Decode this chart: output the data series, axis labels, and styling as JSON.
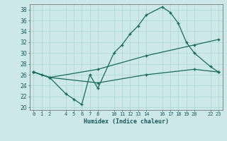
{
  "xlabel": "Humidex (Indice chaleur)",
  "bg_color": "#cce8e8",
  "grid_color": "#aad4d4",
  "line_color": "#1a6b5a",
  "xlim": [
    -0.5,
    23.5
  ],
  "ylim": [
    19.5,
    39
  ],
  "xtick_positions": [
    0,
    1,
    2,
    4,
    5,
    6,
    7,
    8,
    10,
    11,
    12,
    13,
    14,
    16,
    17,
    18,
    19,
    20,
    22,
    23
  ],
  "xtick_labels": [
    "0",
    "1",
    "2",
    "4",
    "5",
    "6",
    "7",
    "8",
    "10",
    "11",
    "12",
    "13",
    "14",
    "16",
    "17",
    "18",
    "19",
    "20",
    "22",
    "23"
  ],
  "ytick_positions": [
    20,
    22,
    24,
    26,
    28,
    30,
    32,
    34,
    36,
    38
  ],
  "ytick_labels": [
    "20",
    "22",
    "24",
    "26",
    "28",
    "30",
    "32",
    "34",
    "36",
    "38"
  ],
  "line1_x": [
    0,
    1,
    2,
    4,
    5,
    6,
    7,
    8,
    10,
    11,
    12,
    13,
    14,
    16,
    17,
    18,
    19,
    20,
    22,
    23
  ],
  "line1_y": [
    26.5,
    26.0,
    25.5,
    22.5,
    21.5,
    20.5,
    26.0,
    23.5,
    30.0,
    31.5,
    33.5,
    35.0,
    37.0,
    38.5,
    37.5,
    35.5,
    32.0,
    30.0,
    27.5,
    26.5
  ],
  "line2_x": [
    0,
    2,
    8,
    14,
    20,
    23
  ],
  "line2_y": [
    26.5,
    25.5,
    27.0,
    29.5,
    31.5,
    32.5
  ],
  "line3_x": [
    0,
    2,
    8,
    14,
    20,
    23
  ],
  "line3_y": [
    26.5,
    25.5,
    24.5,
    26.0,
    27.0,
    26.5
  ]
}
